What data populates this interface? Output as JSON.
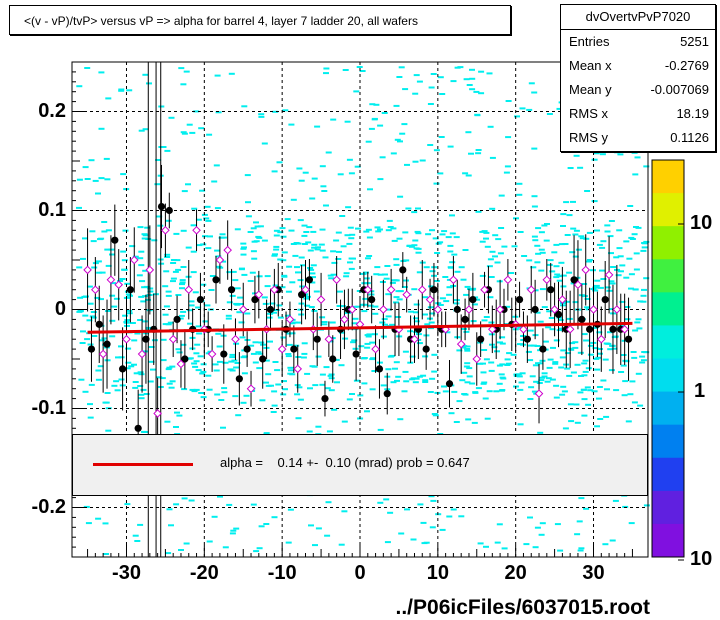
{
  "title": "<(v - vP)/tvP> versus   vP => alpha for barrel 4, layer 7 ladder 20, all wafers",
  "stats": {
    "name": "dvOvertvPvP7020",
    "entries_label": "Entries",
    "entries": "5251",
    "meanx_label": "Mean x",
    "meanx": "-0.2769",
    "meany_label": "Mean y",
    "meany": "-0.007069",
    "rmsx_label": "RMS x",
    "rmsx": "18.19",
    "rmsy_label": "RMS y",
    "rmsy": "0.1126"
  },
  "legend": {
    "text": "alpha =    0.14 +-  0.10 (mrad) prob = 0.647",
    "line_color": "#e00000"
  },
  "footer": "../P06icFiles/6037015.root",
  "colors": {
    "heat": "#00eeee",
    "marker_filled": "#000000",
    "marker_open": "#cc00cc",
    "fit": "#e00000"
  },
  "chart_data": {
    "type": "scatter",
    "title": "<(v - vP)/tvP> versus   vP => alpha for barrel 4, layer 7 ladder 20, all wafers",
    "xlabel": "",
    "ylabel": "",
    "xlim": [
      -37,
      37
    ],
    "ylim": [
      -0.25,
      0.25
    ],
    "xticks": [
      "-30",
      "-20",
      "-10",
      "0",
      "10",
      "20",
      "30"
    ],
    "yticks": [
      "0.2",
      "0.1",
      "0",
      "-0.1",
      "-0.2"
    ],
    "grid": true,
    "z_scale": "log",
    "zticks": [
      "10",
      "1",
      "10"
    ],
    "fit": {
      "x": [
        -35,
        35
      ],
      "y": [
        -0.023,
        -0.014
      ]
    },
    "series": [
      {
        "marker": "filled-circle",
        "x": [
          -34.5,
          -33.5,
          -32.5,
          -31.5,
          -30.5,
          -29.5,
          -28.5,
          -27.5,
          -26.5,
          -25.5,
          -24.5,
          -23.5,
          -22.5,
          -21.5,
          -20.5,
          -19.5,
          -18.5,
          -17.5,
          -16.5,
          -15.5,
          -14.5,
          -13.5,
          -12.5,
          -11.5,
          -10.5,
          -9.5,
          -8.5,
          -7.5,
          -6.5,
          -5.5,
          -4.5,
          -3.5,
          -2.5,
          -1.5,
          -0.5,
          0.5,
          1.5,
          2.5,
          3.5,
          4.5,
          5.5,
          6.5,
          7.5,
          8.5,
          9.5,
          10.5,
          11.5,
          12.5,
          13.5,
          14.5,
          15.5,
          16.5,
          17.5,
          18.5,
          19.5,
          20.5,
          21.5,
          22.5,
          23.5,
          24.5,
          25.5,
          26.5,
          27.5,
          28.5,
          29.5,
          30.5,
          31.5,
          32.5,
          33.5,
          34.5
        ],
        "y": [
          -0.04,
          -0.015,
          -0.035,
          0.07,
          -0.06,
          0.02,
          -0.12,
          -0.03,
          -0.02,
          0.104,
          0.1,
          -0.01,
          -0.05,
          -0.02,
          0.01,
          -0.02,
          0.03,
          -0.045,
          0.02,
          -0.07,
          -0.04,
          0.01,
          -0.05,
          0.0,
          0.02,
          -0.02,
          -0.04,
          0.015,
          0.03,
          -0.03,
          -0.09,
          -0.05,
          -0.02,
          0.0,
          -0.045,
          0.02,
          0.01,
          -0.06,
          -0.085,
          -0.02,
          0.04,
          -0.03,
          -0.02,
          -0.04,
          0.02,
          -0.02,
          -0.075,
          0.0,
          -0.01,
          0.01,
          -0.03,
          0.02,
          -0.02,
          0.0,
          -0.015,
          0.01,
          -0.03,
          0.0,
          -0.04,
          0.02,
          -0.005,
          -0.02,
          0.03,
          -0.01,
          -0.02,
          -0.015,
          0.01,
          -0.02,
          -0.02,
          -0.03
        ]
      },
      {
        "marker": "open-diamond",
        "x": [
          -35,
          -34,
          -33,
          -32,
          -31,
          -30,
          -29,
          -28,
          -27,
          -26,
          -25,
          -24,
          -23,
          -22,
          -21,
          -20,
          -19,
          -18,
          -17,
          -16,
          -15,
          -14,
          -13,
          -12,
          -11,
          -10,
          -9,
          -8,
          -7,
          -6,
          -5,
          -4,
          -3,
          -2,
          -1,
          0,
          1,
          2,
          3,
          4,
          5,
          6,
          7,
          8,
          9,
          10,
          11,
          12,
          13,
          14,
          15,
          16,
          17,
          18,
          19,
          20,
          21,
          22,
          23,
          24,
          25,
          26,
          27,
          28,
          29,
          30,
          31,
          32,
          33,
          34
        ],
        "y": [
          0.04,
          0.02,
          -0.045,
          0.03,
          0.025,
          -0.03,
          0.05,
          -0.045,
          0.04,
          -0.105,
          0.08,
          -0.03,
          -0.055,
          0.02,
          0.08,
          -0.02,
          -0.045,
          0.05,
          0.06,
          -0.03,
          0.0,
          -0.08,
          0.015,
          -0.02,
          0.02,
          -0.04,
          -0.01,
          -0.06,
          0.02,
          -0.02,
          0.01,
          -0.03,
          0.03,
          -0.01,
          0.0,
          -0.015,
          0.02,
          -0.04,
          0.0,
          0.02,
          -0.02,
          0.015,
          -0.03,
          0.02,
          0.01,
          0.0,
          -0.02,
          0.03,
          -0.035,
          0.0,
          -0.05,
          0.02,
          -0.02,
          0.0,
          0.03,
          -0.015,
          -0.02,
          0.02,
          -0.085,
          0.03,
          0.0,
          0.01,
          -0.02,
          0.025,
          0.04,
          0.0,
          -0.03,
          0.035,
          0.0,
          -0.02
        ]
      }
    ]
  }
}
